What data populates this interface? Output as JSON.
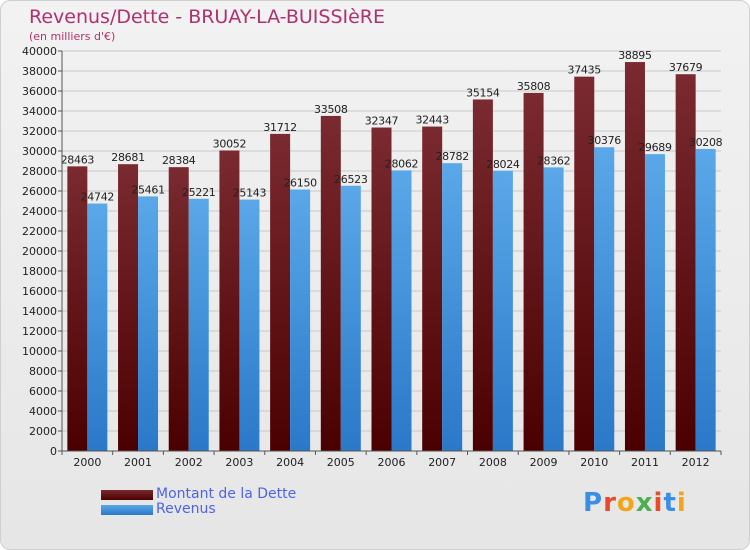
{
  "title": "Revenus/Dette - BRUAY-LA-BUISSIèRE",
  "subtitle": "(en milliers d'€)",
  "brand": {
    "text": "Proxiti",
    "colors": [
      "#3a8ee6",
      "#e84a2a",
      "#f2a51a",
      "#4caf50",
      "#e84a2a",
      "#3a8ee6",
      "#f2a51a"
    ]
  },
  "colors": {
    "title": "#b03070",
    "dette_top": "#7a2a30",
    "dette_bottom": "#4a0000",
    "revenus_top": "#5aa8e8",
    "revenus_bottom": "#2a78c8",
    "legend_text": "#4d64e6"
  },
  "chart_data": {
    "type": "bar",
    "categories": [
      "2000",
      "2001",
      "2002",
      "2003",
      "2004",
      "2005",
      "2006",
      "2007",
      "2008",
      "2009",
      "2010",
      "2011",
      "2012"
    ],
    "series": [
      {
        "name": "Montant de la Dette",
        "values": [
          28463,
          28681,
          28384,
          30052,
          31712,
          33508,
          32347,
          32443,
          35154,
          35808,
          37435,
          38895,
          37679
        ]
      },
      {
        "name": "Revenus",
        "values": [
          24742,
          25461,
          25221,
          25143,
          26150,
          26523,
          28062,
          28782,
          28024,
          28362,
          30376,
          29689,
          30208
        ]
      }
    ],
    "ylim": [
      0,
      40000
    ],
    "yticks": [
      0,
      2000,
      4000,
      6000,
      8000,
      10000,
      12000,
      14000,
      16000,
      18000,
      20000,
      22000,
      24000,
      26000,
      28000,
      30000,
      32000,
      34000,
      36000,
      38000,
      40000
    ],
    "grid": true,
    "legend": "bottom-left"
  }
}
